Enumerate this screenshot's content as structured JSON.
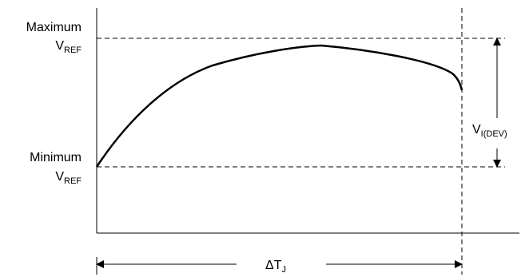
{
  "labels": {
    "maximum": "Maximum",
    "minimum": "Minimum",
    "vref_main": "V",
    "vref_sub": "REF",
    "vdev_main": "V",
    "vdev_sub": "I(DEV)",
    "delta_main": "ΔT",
    "delta_sub": "J"
  },
  "colors": {
    "stroke": "#000000",
    "background": "#ffffff"
  },
  "arrowheads": {
    "marker_name": "filled-triangle"
  }
}
